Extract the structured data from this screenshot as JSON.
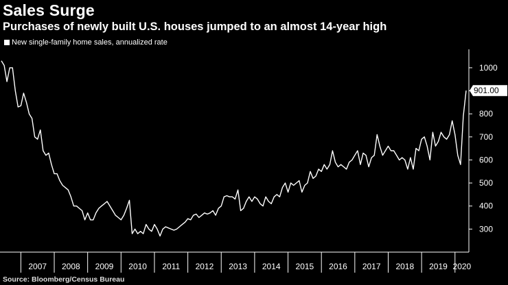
{
  "title": "Sales Surge",
  "subtitle": "Purchases of newly built U.S. houses jumped to an almost 14-year high",
  "source": "Source: Bloomberg/Census Bureau",
  "colors": {
    "background": "#000000",
    "line": "#ffffff",
    "text": "#ffffff"
  },
  "chart_data": {
    "type": "line",
    "title": "Sales Surge",
    "subtitle": "Purchases of newly built U.S. houses jumped to an almost 14-year high",
    "legend": "top-left",
    "grid": false,
    "series": [
      {
        "name": "New single-family home sales, annualized rate",
        "start": "2006-06",
        "frequency": "monthly",
        "values": [
          1030,
          1010,
          940,
          1000,
          1000,
          900,
          830,
          835,
          890,
          850,
          800,
          780,
          700,
          690,
          730,
          640,
          620,
          630,
          580,
          540,
          540,
          510,
          490,
          480,
          470,
          440,
          400,
          400,
          390,
          380,
          340,
          370,
          340,
          340,
          370,
          390,
          400,
          410,
          420,
          400,
          380,
          360,
          350,
          340,
          360,
          390,
          425,
          280,
          300,
          280,
          290,
          280,
          320,
          300,
          290,
          320,
          300,
          270,
          300,
          310,
          305,
          300,
          295,
          300,
          310,
          320,
          330,
          345,
          340,
          360,
          365,
          350,
          360,
          370,
          365,
          370,
          380,
          360,
          390,
          400,
          440,
          445,
          440,
          440,
          430,
          470,
          380,
          390,
          420,
          440,
          420,
          440,
          430,
          410,
          400,
          440,
          420,
          410,
          440,
          450,
          440,
          480,
          500,
          460,
          500,
          490,
          500,
          510,
          460,
          490,
          500,
          550,
          520,
          530,
          560,
          550,
          580,
          560,
          580,
          640,
          590,
          570,
          580,
          570,
          560,
          590,
          600,
          620,
          640,
          580,
          630,
          620,
          570,
          610,
          620,
          710,
          660,
          620,
          640,
          660,
          640,
          640,
          620,
          600,
          610,
          600,
          560,
          610,
          560,
          650,
          640,
          690,
          700,
          660,
          600,
          720,
          660,
          680,
          720,
          700,
          690,
          710,
          770,
          710,
          620,
          580,
          790,
          901
        ]
      }
    ],
    "x_ticks": [
      "2007",
      "2008",
      "2009",
      "2010",
      "2011",
      "2012",
      "2013",
      "2014",
      "2015",
      "2016",
      "2017",
      "2018",
      "2019",
      "2020"
    ],
    "y_ticks": [
      300,
      400,
      500,
      600,
      700,
      800,
      1000
    ],
    "ylim": [
      200,
      1080
    ],
    "last_value_label": "901.00"
  }
}
